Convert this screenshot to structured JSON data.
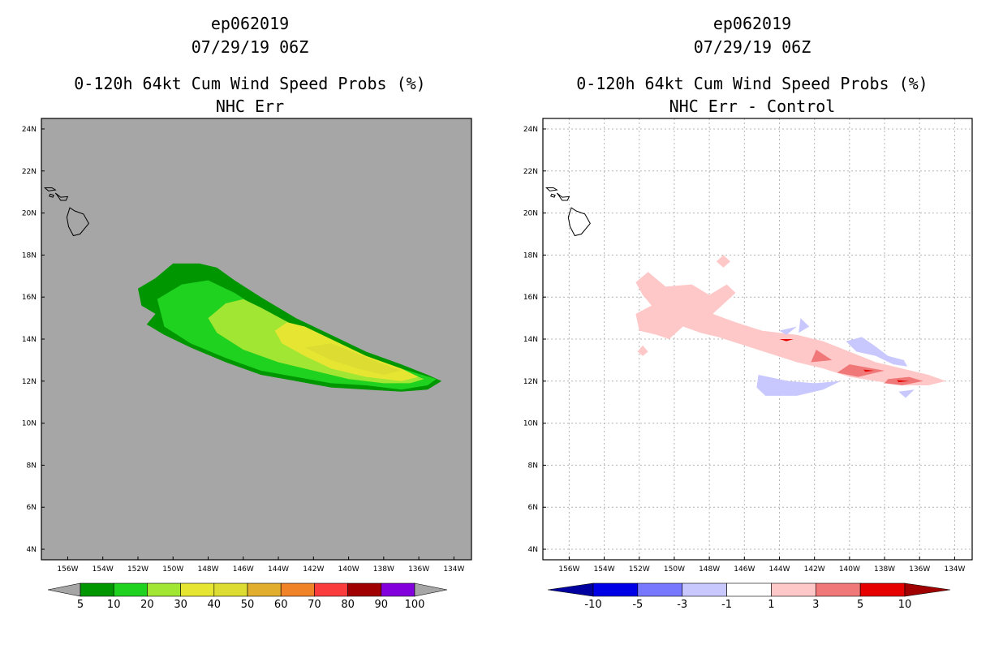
{
  "chart_data": [
    {
      "type": "contour-map",
      "storm_id": "ep062019",
      "datetime": "07/29/19 06Z",
      "title": "0-120h 64kt Cum Wind Speed Probs (%)",
      "subtitle": "NHC Err",
      "lon_ticks": [
        "156W",
        "154W",
        "152W",
        "150W",
        "148W",
        "146W",
        "144W",
        "142W",
        "140W",
        "138W",
        "136W",
        "134W"
      ],
      "lat_ticks": [
        "24N",
        "22N",
        "20N",
        "18N",
        "16N",
        "14N",
        "12N",
        "10N",
        "8N",
        "6N",
        "4N"
      ],
      "lon_range": [
        -157.5,
        -133.0
      ],
      "lat_range": [
        3.5,
        24.5
      ],
      "grid": false,
      "background_color": "#a6a6a6",
      "colorbar": {
        "labels": [
          "5",
          "10",
          "20",
          "30",
          "40",
          "50",
          "60",
          "70",
          "80",
          "90",
          "100"
        ],
        "colors": [
          "#a6a6a6",
          "#009600",
          "#1fd21f",
          "#a0e632",
          "#e6e632",
          "#dcdc32",
          "#e1af2d",
          "#f08228",
          "#fa3c3c",
          "#a00000",
          "#8200dc",
          "#a6a6a6"
        ]
      },
      "contours": [
        {
          "level": 5,
          "color": "#009600",
          "polygon": [
            [
              -152.0,
              16.4
            ],
            [
              -151.0,
              16.9
            ],
            [
              -150.0,
              17.6
            ],
            [
              -148.5,
              17.6
            ],
            [
              -147.5,
              17.4
            ],
            [
              -146.5,
              16.8
            ],
            [
              -145.0,
              16.0
            ],
            [
              -143.0,
              15.0
            ],
            [
              -141.0,
              14.2
            ],
            [
              -139.0,
              13.4
            ],
            [
              -137.0,
              12.8
            ],
            [
              -135.5,
              12.3
            ],
            [
              -134.7,
              12.0
            ],
            [
              -135.5,
              11.6
            ],
            [
              -137.0,
              11.5
            ],
            [
              -139.0,
              11.6
            ],
            [
              -141.0,
              11.7
            ],
            [
              -143.0,
              12.0
            ],
            [
              -145.0,
              12.3
            ],
            [
              -147.0,
              12.9
            ],
            [
              -149.0,
              13.6
            ],
            [
              -150.5,
              14.2
            ],
            [
              -151.5,
              14.7
            ],
            [
              -151.0,
              15.2
            ],
            [
              -151.8,
              15.6
            ]
          ]
        },
        {
          "level": 10,
          "color": "#1fd21f",
          "polygon": [
            [
              -150.9,
              15.9
            ],
            [
              -149.5,
              16.6
            ],
            [
              -148.0,
              16.8
            ],
            [
              -146.5,
              16.2
            ],
            [
              -145.0,
              15.4
            ],
            [
              -143.0,
              14.5
            ],
            [
              -141.0,
              13.7
            ],
            [
              -139.0,
              13.0
            ],
            [
              -137.0,
              12.6
            ],
            [
              -135.0,
              12.1
            ],
            [
              -135.5,
              11.8
            ],
            [
              -137.0,
              11.6
            ],
            [
              -139.0,
              11.8
            ],
            [
              -141.0,
              11.9
            ],
            [
              -143.0,
              12.2
            ],
            [
              -145.0,
              12.5
            ],
            [
              -147.0,
              13.1
            ],
            [
              -149.0,
              13.8
            ],
            [
              -150.5,
              14.6
            ]
          ]
        },
        {
          "level": 20,
          "color": "#a0e632",
          "polygon": [
            [
              -148.0,
              15.0
            ],
            [
              -147.0,
              15.7
            ],
            [
              -146.0,
              15.9
            ],
            [
              -145.0,
              15.5
            ],
            [
              -143.0,
              14.6
            ],
            [
              -141.0,
              13.7
            ],
            [
              -139.0,
              13.0
            ],
            [
              -137.0,
              12.5
            ],
            [
              -135.7,
              12.1
            ],
            [
              -136.5,
              11.9
            ],
            [
              -138.0,
              11.9
            ],
            [
              -140.0,
              12.1
            ],
            [
              -142.0,
              12.5
            ],
            [
              -144.0,
              12.9
            ],
            [
              -146.0,
              13.5
            ],
            [
              -147.5,
              14.3
            ]
          ]
        },
        {
          "level": 30,
          "color": "#e6e632",
          "polygon": [
            [
              -144.2,
              14.4
            ],
            [
              -143.5,
              14.8
            ],
            [
              -142.5,
              14.6
            ],
            [
              -141.0,
              14.0
            ],
            [
              -139.0,
              13.2
            ],
            [
              -137.0,
              12.6
            ],
            [
              -136.0,
              12.2
            ],
            [
              -137.0,
              12.0
            ],
            [
              -139.0,
              12.2
            ],
            [
              -141.0,
              12.6
            ],
            [
              -142.5,
              13.2
            ],
            [
              -143.8,
              13.8
            ]
          ]
        },
        {
          "level": 40,
          "color": "#dcdc32",
          "polygon": [
            [
              -142.5,
              13.6
            ],
            [
              -141.0,
              13.8
            ],
            [
              -139.5,
              13.3
            ],
            [
              -138.0,
              12.8
            ],
            [
              -137.0,
              12.5
            ],
            [
              -138.0,
              12.3
            ],
            [
              -139.5,
              12.6
            ],
            [
              -141.0,
              13.0
            ]
          ]
        }
      ]
    },
    {
      "type": "contour-map",
      "storm_id": "ep062019",
      "datetime": "07/29/19 06Z",
      "title": "0-120h 64kt Cum Wind Speed Probs (%)",
      "subtitle": "NHC Err - Control",
      "lon_ticks": [
        "156W",
        "154W",
        "152W",
        "150W",
        "148W",
        "146W",
        "144W",
        "142W",
        "140W",
        "138W",
        "136W",
        "134W"
      ],
      "lat_ticks": [
        "24N",
        "22N",
        "20N",
        "18N",
        "16N",
        "14N",
        "12N",
        "10N",
        "8N",
        "6N",
        "4N"
      ],
      "lon_range": [
        -157.5,
        -133.0
      ],
      "lat_range": [
        3.5,
        24.5
      ],
      "grid": true,
      "background_color": "#ffffff",
      "colorbar": {
        "labels": [
          "-10",
          "-5",
          "-3",
          "-1",
          "1",
          "3",
          "5",
          "10"
        ],
        "colors": [
          "#0000a0",
          "#0000e6",
          "#7878ff",
          "#c8c8ff",
          "#ffffff",
          "#ffc8c8",
          "#f07878",
          "#e60000",
          "#a00000"
        ]
      },
      "contours": [
        {
          "level": 1,
          "color": "#ffc8c8",
          "polygon": [
            [
              -152.2,
              16.7
            ],
            [
              -151.5,
              17.2
            ],
            [
              -150.5,
              16.5
            ],
            [
              -149.0,
              16.6
            ],
            [
              -148.0,
              16.1
            ],
            [
              -147.0,
              16.6
            ],
            [
              -146.5,
              16.2
            ],
            [
              -147.8,
              15.2
            ],
            [
              -146.5,
              14.8
            ],
            [
              -145.0,
              14.4
            ],
            [
              -143.0,
              14.2
            ],
            [
              -141.5,
              13.9
            ],
            [
              -140.0,
              13.4
            ],
            [
              -138.5,
              12.9
            ],
            [
              -137.0,
              12.6
            ],
            [
              -135.5,
              12.3
            ],
            [
              -134.5,
              12.0
            ],
            [
              -135.5,
              11.8
            ],
            [
              -137.0,
              11.8
            ],
            [
              -138.5,
              12.0
            ],
            [
              -140.0,
              12.2
            ],
            [
              -141.5,
              12.6
            ],
            [
              -143.0,
              12.9
            ],
            [
              -144.5,
              13.3
            ],
            [
              -146.0,
              13.7
            ],
            [
              -147.5,
              14.1
            ],
            [
              -148.5,
              14.3
            ],
            [
              -149.5,
              14.6
            ],
            [
              -150.3,
              14.0
            ],
            [
              -151.0,
              14.2
            ],
            [
              -152.0,
              14.4
            ],
            [
              -152.2,
              15.2
            ],
            [
              -151.3,
              15.6
            ],
            [
              -151.8,
              16.1
            ]
          ]
        },
        {
          "level": 1,
          "color": "#ffc8c8",
          "polygon": [
            [
              -147.2,
              18.0
            ],
            [
              -146.8,
              17.7
            ],
            [
              -147.2,
              17.4
            ],
            [
              -147.6,
              17.7
            ]
          ]
        },
        {
          "level": 1,
          "color": "#ffc8c8",
          "polygon": [
            [
              -151.8,
              13.7
            ],
            [
              -151.5,
              13.4
            ],
            [
              -151.8,
              13.2
            ],
            [
              -152.1,
              13.4
            ]
          ]
        },
        {
          "level": 3,
          "color": "#f07878",
          "polygon": [
            [
              -141.9,
              13.5
            ],
            [
              -141.0,
              13.0
            ],
            [
              -142.2,
              12.9
            ]
          ]
        },
        {
          "level": 3,
          "color": "#f07878",
          "polygon": [
            [
              -140.0,
              12.8
            ],
            [
              -138.0,
              12.5
            ],
            [
              -139.5,
              12.2
            ],
            [
              -140.7,
              12.4
            ]
          ]
        },
        {
          "level": 3,
          "color": "#f07878",
          "polygon": [
            [
              -137.8,
              12.1
            ],
            [
              -136.6,
              12.2
            ],
            [
              -135.8,
              12.0
            ],
            [
              -137.0,
              11.8
            ],
            [
              -138.0,
              11.9
            ]
          ]
        },
        {
          "level": 5,
          "color": "#e60000",
          "polygon": [
            [
              -144.0,
              14.0
            ],
            [
              -143.2,
              14.0
            ],
            [
              -143.6,
              13.9
            ]
          ]
        },
        {
          "level": 5,
          "color": "#e60000",
          "polygon": [
            [
              -139.2,
              12.55
            ],
            [
              -138.6,
              12.5
            ],
            [
              -139.1,
              12.45
            ]
          ]
        },
        {
          "level": 5,
          "color": "#e60000",
          "polygon": [
            [
              -137.3,
              12.05
            ],
            [
              -136.6,
              12.0
            ],
            [
              -137.2,
              11.95
            ]
          ]
        },
        {
          "level": -1,
          "color": "#c8c8ff",
          "polygon": [
            [
              -145.2,
              12.3
            ],
            [
              -143.5,
              12.0
            ],
            [
              -142.0,
              11.9
            ],
            [
              -140.5,
              12.0
            ],
            [
              -141.5,
              11.6
            ],
            [
              -143.0,
              11.3
            ],
            [
              -144.8,
              11.3
            ],
            [
              -145.3,
              11.7
            ]
          ]
        },
        {
          "level": -1,
          "color": "#c8c8ff",
          "polygon": [
            [
              -140.2,
              13.9
            ],
            [
              -139.3,
              14.1
            ],
            [
              -138.6,
              13.7
            ],
            [
              -137.8,
              13.2
            ],
            [
              -136.9,
              13.0
            ],
            [
              -136.7,
              12.7
            ],
            [
              -137.5,
              12.8
            ],
            [
              -138.5,
              13.2
            ],
            [
              -139.6,
              13.4
            ]
          ]
        },
        {
          "level": -1,
          "color": "#c8c8ff",
          "polygon": [
            [
              -142.8,
              15.0
            ],
            [
              -142.3,
              14.6
            ],
            [
              -142.9,
              14.3
            ]
          ]
        },
        {
          "level": -1,
          "color": "#c8c8ff",
          "polygon": [
            [
              -144.0,
              14.4
            ],
            [
              -143.0,
              14.6
            ],
            [
              -143.6,
              14.2
            ]
          ]
        },
        {
          "level": -1,
          "color": "#c8c8ff",
          "polygon": [
            [
              -137.2,
              11.5
            ],
            [
              -136.3,
              11.6
            ],
            [
              -136.8,
              11.2
            ]
          ]
        }
      ]
    }
  ]
}
